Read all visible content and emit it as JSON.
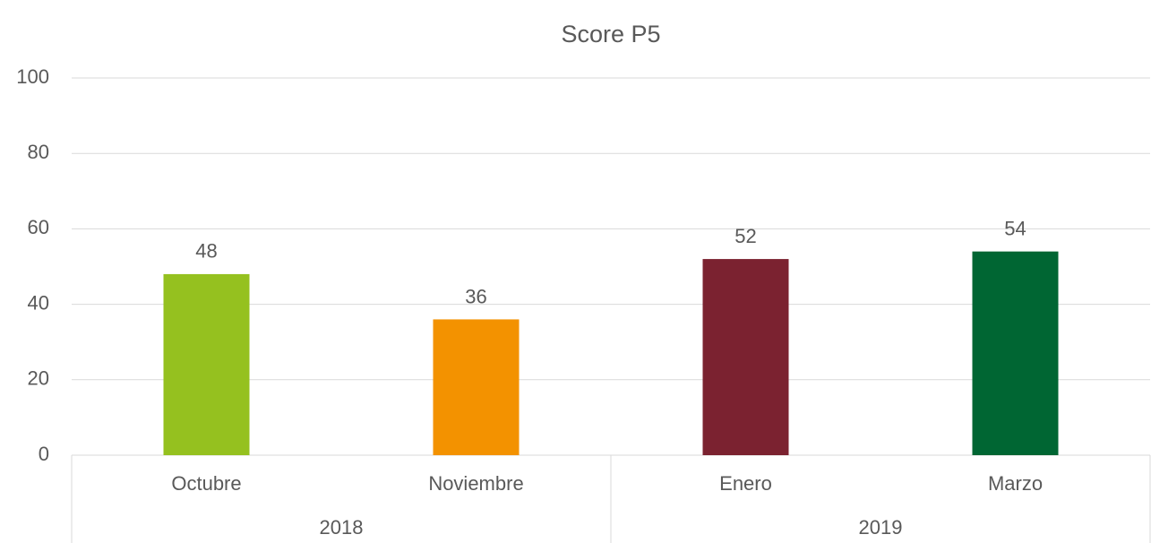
{
  "chart_data": {
    "type": "bar",
    "title": "Score P5",
    "groups": [
      {
        "name": "2018",
        "categories": [
          "Octubre",
          "Noviembre"
        ]
      },
      {
        "name": "2019",
        "categories": [
          "Enero",
          "Marzo"
        ]
      }
    ],
    "values": [
      48,
      36,
      52,
      54
    ],
    "colors": [
      "#95c11f",
      "#f39200",
      "#7b2230",
      "#006633"
    ],
    "ylim": [
      0,
      100
    ],
    "yticks": [
      0,
      20,
      40,
      60,
      80,
      100
    ],
    "grid": true,
    "data_labels": true
  }
}
